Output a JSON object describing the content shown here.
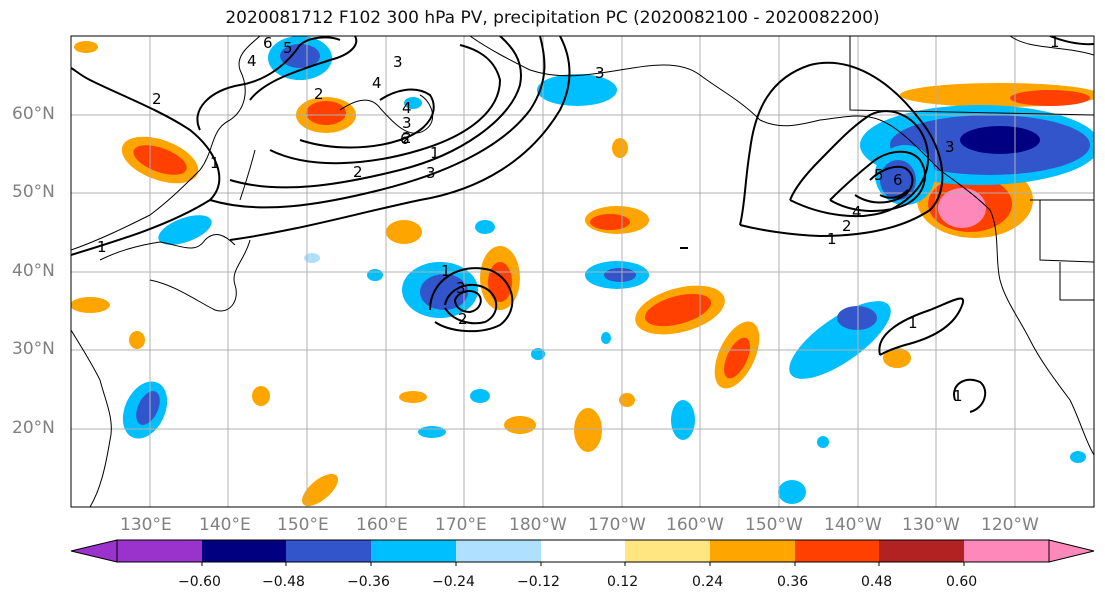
{
  "title": "2020081712 F102 300 hPa PV, precipitation PC (2020082100 - 2020082200)",
  "lat_labels": [
    "60°N",
    "50°N",
    "40°N",
    "30°N",
    "20°N"
  ],
  "lon_labels": [
    "130°E",
    "140°E",
    "150°E",
    "160°E",
    "170°E",
    "180°W",
    "170°W",
    "160°W",
    "150°W",
    "140°W",
    "130°W",
    "120°W"
  ],
  "colorbar": {
    "ticks": [
      "−0.60",
      "−0.48",
      "−0.36",
      "−0.24",
      "−0.12",
      "0.12",
      "0.24",
      "0.36",
      "0.48",
      "0.60"
    ],
    "colors": [
      "#9933cc",
      "#000080",
      "#3355cc",
      "#00bfff",
      "#b0e0ff",
      "#ffffff",
      "#ffe680",
      "#ffa500",
      "#ff4000",
      "#b22222",
      "#ff88bb"
    ]
  },
  "contour_labels": [
    "6",
    "5",
    "4",
    "3",
    "2",
    "1",
    "4",
    "3",
    "2",
    "1",
    "2",
    "3",
    "1",
    "6",
    "5",
    "4",
    "3",
    "2",
    "1",
    "1",
    "3",
    "2",
    "1",
    "1",
    "1",
    "6",
    "4",
    "3",
    "2"
  ]
}
